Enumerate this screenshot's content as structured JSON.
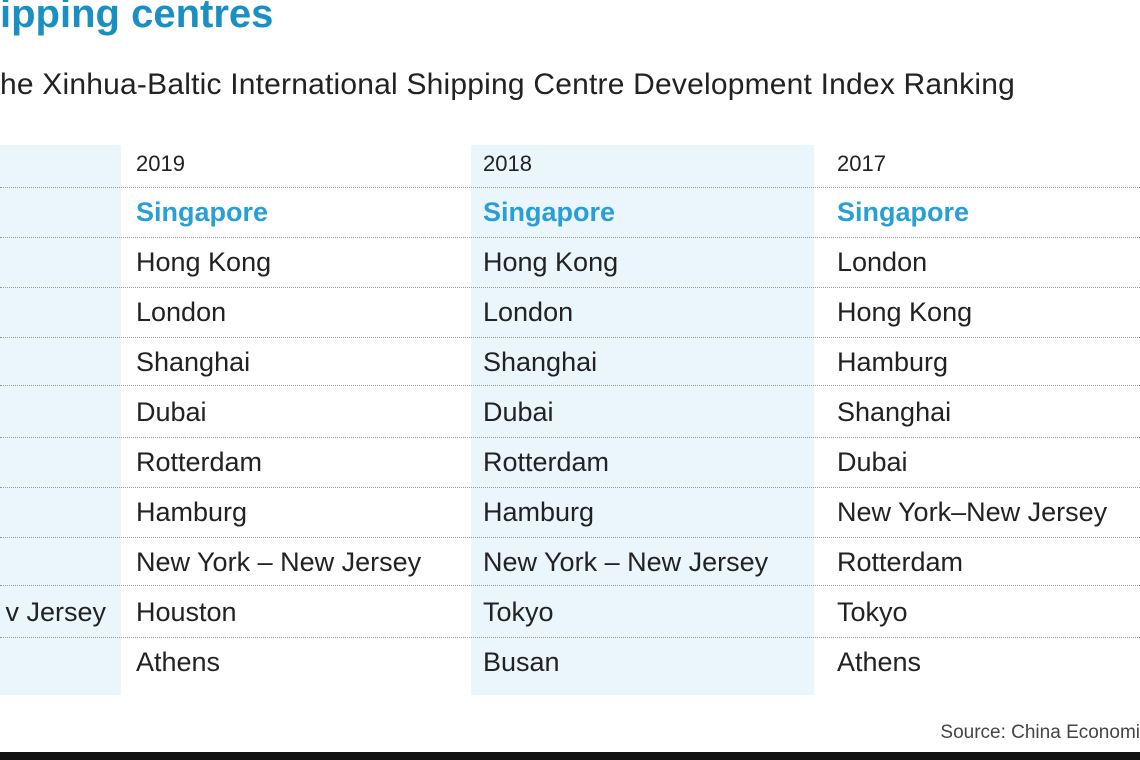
{
  "header": {
    "title": "ipping centres",
    "subtitle": "he Xinhua-Baltic International Shipping Centre Development Index Ranking"
  },
  "table": {
    "left_column_fragment": "v Jersey",
    "columns": [
      {
        "header": "2019",
        "rows": [
          "Singapore",
          "Hong Kong",
          "London",
          "Shanghai",
          "Dubai",
          "Rotterdam",
          "Hamburg",
          "New York – New Jersey",
          "Houston",
          "Athens"
        ]
      },
      {
        "header": "2018",
        "rows": [
          "Singapore",
          "Hong Kong",
          "London",
          "Shanghai",
          "Dubai",
          "Rotterdam",
          "Hamburg",
          "New York – New Jersey",
          "Tokyo",
          "Busan"
        ]
      },
      {
        "header": "2017",
        "rows": [
          "Singapore",
          "London",
          "Hong Kong",
          "Hamburg",
          "Shanghai",
          "Dubai",
          "New York–New Jersey",
          "Rotterdam",
          "Tokyo",
          "Athens"
        ]
      }
    ]
  },
  "footer": {
    "source": "Source:  China Economi"
  }
}
